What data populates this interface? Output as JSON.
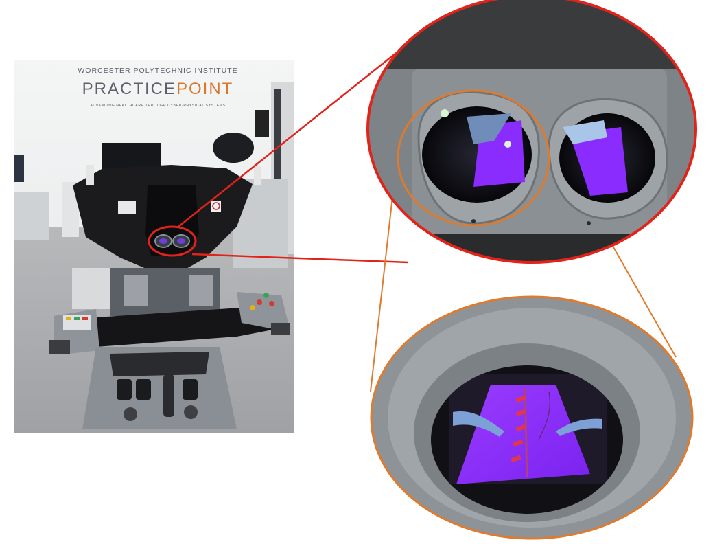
{
  "photo": {
    "institute": "WORCESTER POLYTECHNIC INSTITUTE",
    "brand_practice": "PRACTICE",
    "brand_point": "POINT",
    "tagline": "ADVANCING HEALTHCARE THROUGH CYBER-PHYSICAL SYSTEMS"
  },
  "colors": {
    "red_callout": "#e2231a",
    "orange_callout": "#e07a2c",
    "brand_gray": "#59616a",
    "brand_orange": "#d9772b",
    "screen_purple": "#8b2cff",
    "console_black": "#1a1a1c",
    "console_gray": "#8f949b"
  }
}
